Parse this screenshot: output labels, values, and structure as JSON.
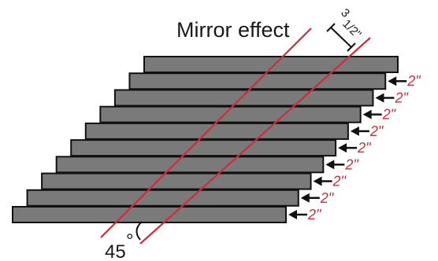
{
  "title": "Mirror effect",
  "gap_label_a": "3",
  "gap_label_b": "1/2\"",
  "offset_label": "2\"",
  "offset_count": 9,
  "board_count": 10,
  "angle_value": "45",
  "angle_unit": "°",
  "colors": {
    "board_fill": "#7a7a7a",
    "board_stroke": "#111111",
    "cut_line": "#d42a3a",
    "label_red": "#d42a3a",
    "ink": "#111111"
  }
}
